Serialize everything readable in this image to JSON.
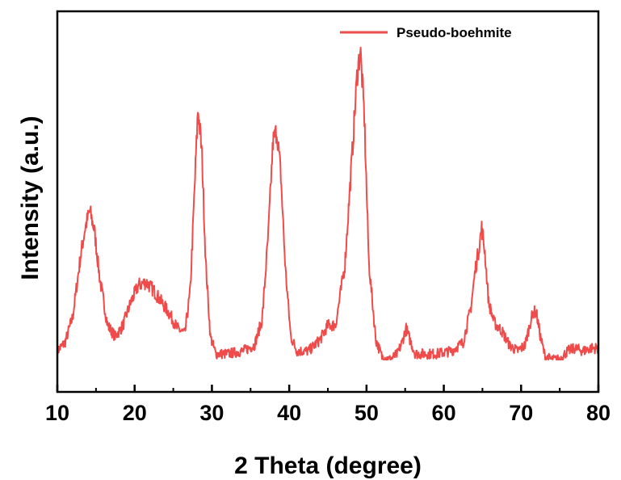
{
  "chart_data": {
    "type": "line",
    "title": "",
    "xlabel": "2 Theta (degree)",
    "ylabel": "Intensity (a.u.)",
    "xlim": [
      10,
      80
    ],
    "ylim": [
      0,
      1.1
    ],
    "xticks": [
      "10",
      "20",
      "30",
      "40",
      "50",
      "60",
      "70",
      "80"
    ],
    "ytick_labels_shown": false,
    "grid": false,
    "legend_position": "top-right",
    "series": [
      {
        "name": "Pseudo-boehmite",
        "color": "#ef4b4b",
        "x": [
          10,
          11,
          12,
          13,
          13.6,
          14.2,
          14.8,
          15.5,
          16.5,
          17.5,
          18.5,
          19.5,
          20.5,
          21.5,
          22.5,
          23.5,
          24.5,
          25.5,
          26.5,
          27.2,
          27.7,
          28.2,
          28.7,
          29.2,
          29.8,
          30.5,
          32,
          34,
          35.5,
          36.5,
          37.3,
          37.9,
          38.4,
          38.9,
          39.5,
          40.2,
          41,
          42.5,
          44,
          45,
          46,
          47.2,
          48.2,
          48.8,
          49.2,
          49.7,
          50.3,
          51.2,
          52,
          53,
          54,
          54.6,
          55.1,
          55.6,
          56.3,
          57.5,
          59,
          61,
          62.5,
          63.5,
          64.1,
          64.5,
          64.9,
          65.3,
          65.8,
          66.5,
          67.5,
          68.5,
          69.5,
          70.5,
          71.2,
          71.6,
          72,
          72.5,
          73.1,
          74,
          75,
          76,
          77,
          78,
          79,
          80
        ],
        "y": [
          0.03,
          0.06,
          0.15,
          0.36,
          0.46,
          0.52,
          0.45,
          0.28,
          0.12,
          0.08,
          0.12,
          0.2,
          0.26,
          0.27,
          0.24,
          0.2,
          0.16,
          0.11,
          0.09,
          0.24,
          0.56,
          0.88,
          0.72,
          0.34,
          0.08,
          0.02,
          0.02,
          0.03,
          0.05,
          0.14,
          0.44,
          0.76,
          0.8,
          0.65,
          0.32,
          0.08,
          0.03,
          0.03,
          0.07,
          0.12,
          0.12,
          0.33,
          0.74,
          1.0,
          1.08,
          0.86,
          0.34,
          0.07,
          0.01,
          0.0,
          0.02,
          0.06,
          0.11,
          0.07,
          0.02,
          0.02,
          0.02,
          0.03,
          0.06,
          0.18,
          0.32,
          0.38,
          0.46,
          0.38,
          0.2,
          0.13,
          0.1,
          0.05,
          0.03,
          0.05,
          0.13,
          0.17,
          0.16,
          0.08,
          0.01,
          0.0,
          0.0,
          0.03,
          0.04,
          0.03,
          0.04,
          0.04
        ]
      }
    ]
  }
}
